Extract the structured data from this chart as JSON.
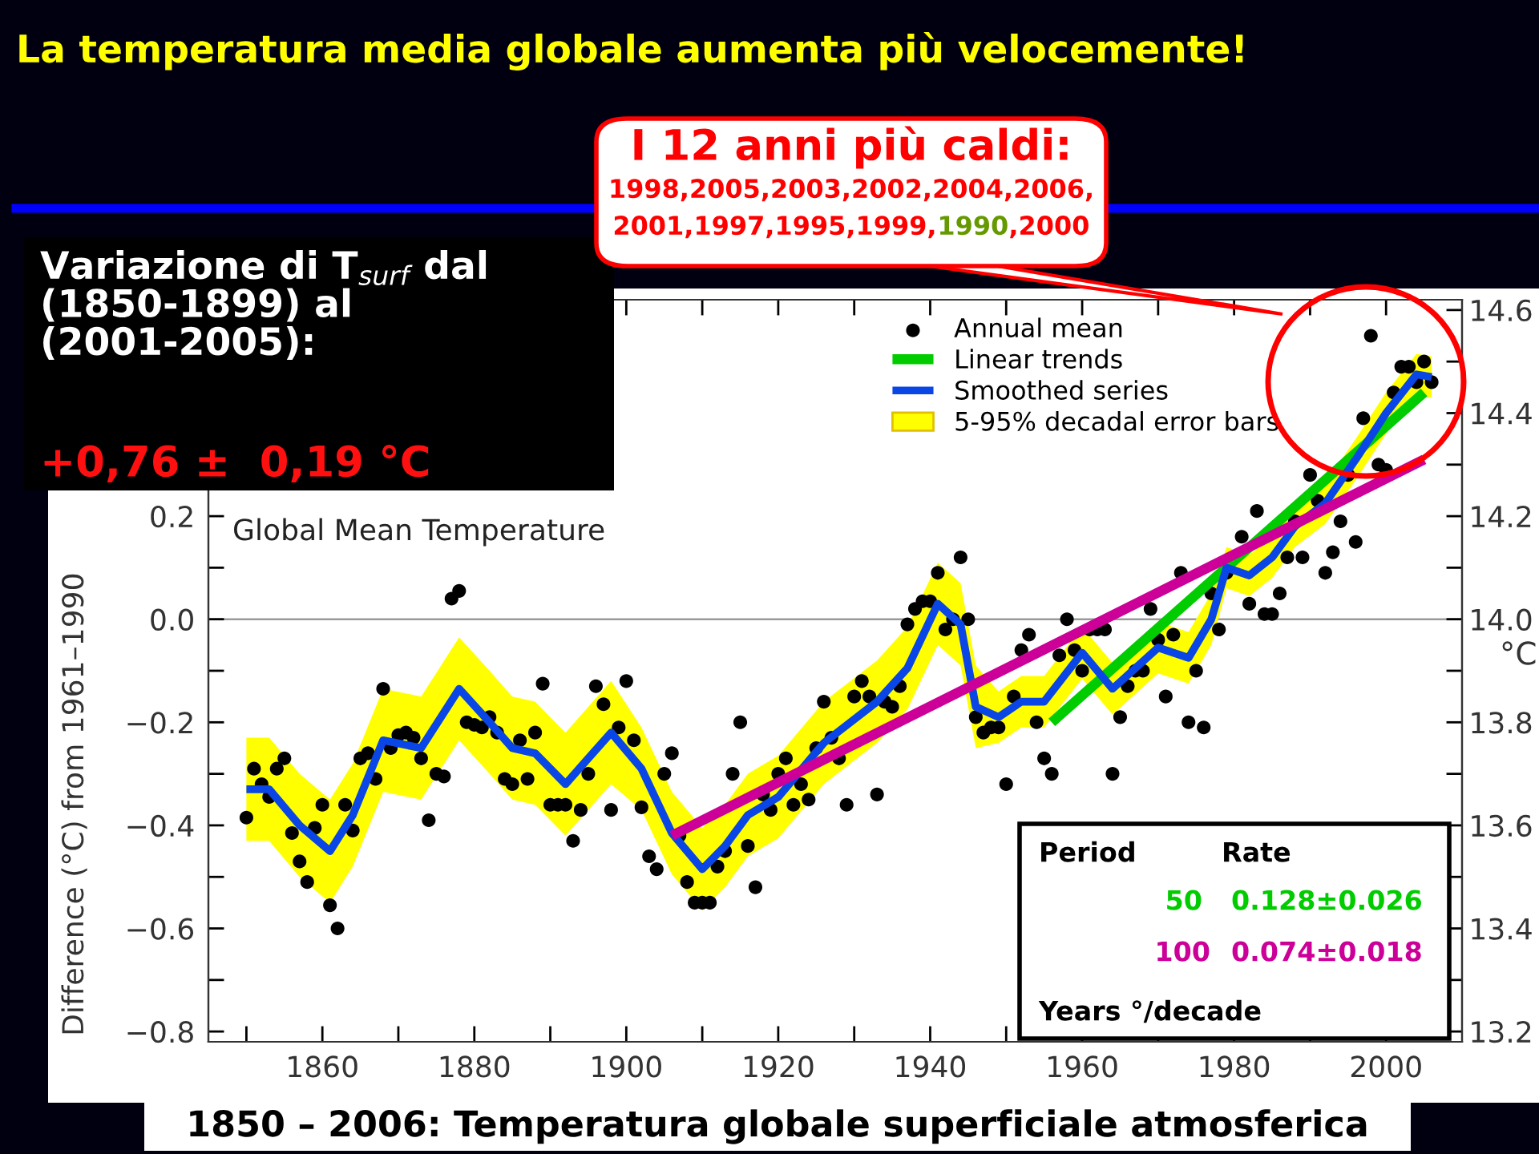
{
  "chart_data": {
    "type": "line",
    "title": "La temperatura media globale aumenta più velocemente!",
    "subtitle": "Global Mean Temperature",
    "ylabel": "Difference (°C) from 1961–1990",
    "y2label": "°C",
    "xlim": [
      1845,
      2010
    ],
    "xticks": [
      {
        "value": 1850,
        "label": null
      },
      1860,
      {
        "value": 1870,
        "label": null
      },
      1880,
      {
        "value": 1890,
        "label": null
      },
      1900,
      {
        "value": 1910,
        "label": null
      },
      1920,
      {
        "value": 1930,
        "label": null
      },
      1940,
      {
        "value": 1950,
        "label": null
      },
      1960,
      {
        "value": 1970,
        "label": null
      },
      1980,
      {
        "value": 1990,
        "label": null
      },
      2000
    ],
    "ylim": [
      -0.82,
      0.62
    ],
    "yticks": [
      {
        "value": -0.8,
        "label": "−0.8"
      },
      {
        "value": -0.7,
        "label": null
      },
      {
        "value": -0.6,
        "label": "−0.6"
      },
      {
        "value": -0.5,
        "label": null
      },
      {
        "value": -0.4,
        "label": "−0.4"
      },
      {
        "value": -0.3,
        "label": null
      },
      {
        "value": -0.2,
        "label": "−0.2"
      },
      {
        "value": -0.1,
        "label": null
      },
      {
        "value": 0,
        "label": "0.0"
      },
      {
        "value": 0.1,
        "label": null
      },
      0.2
    ],
    "y2lim": [
      13.18,
      14.62
    ],
    "y2ticks": [
      13.2,
      {
        "value": 13.3,
        "label": null
      },
      13.4,
      {
        "value": 13.5,
        "label": null
      },
      13.6,
      {
        "value": 13.7,
        "label": null
      },
      13.8,
      {
        "value": 13.9,
        "label": null
      },
      {
        "value": 14,
        "label": "14.0"
      },
      {
        "value": 14.1,
        "label": null
      },
      14.2,
      {
        "value": 14.3,
        "label": null
      },
      14.4,
      {
        "value": 14.5,
        "label": null
      },
      14.6
    ],
    "grid": false,
    "legend": "top",
    "ref_lines": [
      {
        "axis": "y",
        "value": 0,
        "color": "#9a9a9a"
      }
    ],
    "series": [
      {
        "name": "Annual mean",
        "type": "scatter",
        "color": "#000000",
        "marker": "circle",
        "x": [
          1850,
          1851,
          1852,
          1853,
          1854,
          1855,
          1856,
          1857,
          1858,
          1859,
          1860,
          1861,
          1862,
          1863,
          1864,
          1865,
          1866,
          1867,
          1868,
          1869,
          1870,
          1871,
          1872,
          1873,
          1874,
          1875,
          1876,
          1877,
          1878,
          1879,
          1880,
          1881,
          1882,
          1883,
          1884,
          1885,
          1886,
          1887,
          1888,
          1889,
          1890,
          1891,
          1892,
          1893,
          1894,
          1895,
          1896,
          1897,
          1898,
          1899,
          1900,
          1901,
          1902,
          1903,
          1904,
          1905,
          1906,
          1907,
          1908,
          1909,
          1910,
          1911,
          1912,
          1913,
          1914,
          1915,
          1916,
          1917,
          1918,
          1919,
          1920,
          1921,
          1922,
          1923,
          1924,
          1925,
          1926,
          1927,
          1928,
          1929,
          1930,
          1931,
          1932,
          1933,
          1934,
          1935,
          1936,
          1937,
          1938,
          1939,
          1940,
          1941,
          1942,
          1943,
          1944,
          1945,
          1946,
          1947,
          1948,
          1949,
          1950,
          1951,
          1952,
          1953,
          1954,
          1955,
          1956,
          1957,
          1958,
          1959,
          1960,
          1961,
          1962,
          1963,
          1964,
          1965,
          1966,
          1967,
          1968,
          1969,
          1970,
          1971,
          1972,
          1973,
          1974,
          1975,
          1976,
          1977,
          1978,
          1979,
          1980,
          1981,
          1982,
          1983,
          1984,
          1985,
          1986,
          1987,
          1988,
          1989,
          1990,
          1991,
          1992,
          1993,
          1994,
          1995,
          1996,
          1997,
          1998,
          1999,
          2000,
          2001,
          2002,
          2003,
          2004,
          2005,
          2006
        ],
        "values": [
          -0.385,
          -0.29,
          -0.32,
          -0.345,
          -0.29,
          -0.27,
          -0.415,
          -0.47,
          -0.51,
          -0.405,
          -0.36,
          -0.555,
          -0.6,
          -0.36,
          -0.41,
          -0.27,
          -0.26,
          -0.31,
          -0.135,
          -0.25,
          -0.225,
          -0.22,
          -0.23,
          -0.27,
          -0.39,
          -0.3,
          -0.305,
          0.04,
          0.055,
          -0.2,
          -0.205,
          -0.21,
          -0.19,
          -0.22,
          -0.31,
          -0.32,
          -0.235,
          -0.31,
          -0.22,
          -0.125,
          -0.36,
          -0.36,
          -0.36,
          -0.43,
          -0.37,
          -0.3,
          -0.13,
          -0.165,
          -0.37,
          -0.21,
          -0.12,
          -0.235,
          -0.365,
          -0.46,
          -0.485,
          -0.3,
          -0.26,
          -0.42,
          -0.51,
          -0.55,
          -0.55,
          -0.55,
          -0.48,
          -0.45,
          -0.3,
          -0.2,
          -0.44,
          -0.52,
          -0.34,
          -0.37,
          -0.3,
          -0.27,
          -0.36,
          -0.32,
          -0.35,
          -0.25,
          -0.16,
          -0.23,
          -0.27,
          -0.36,
          -0.15,
          -0.12,
          -0.15,
          -0.34,
          -0.16,
          -0.17,
          -0.13,
          -0.01,
          0.02,
          0.035,
          0.035,
          0.09,
          -0.02,
          0.0,
          0.12,
          0.0,
          -0.19,
          -0.22,
          -0.21,
          -0.21,
          -0.32,
          -0.15,
          -0.06,
          -0.03,
          -0.2,
          -0.27,
          -0.3,
          -0.07,
          0.0,
          -0.06,
          -0.1,
          -0.02,
          -0.02,
          -0.02,
          -0.3,
          -0.19,
          -0.13,
          -0.1,
          -0.1,
          0.02,
          -0.04,
          -0.15,
          -0.03,
          0.09,
          -0.2,
          -0.1,
          -0.21,
          0.05,
          -0.02,
          0.09,
          null,
          0.16,
          0.03,
          0.21,
          0.01,
          0.01,
          0.05,
          0.12,
          0.19,
          0.12,
          0.28,
          0.23,
          0.09,
          0.13,
          0.19,
          0.28,
          0.15,
          0.39,
          0.55,
          0.3,
          0.29,
          0.44,
          0.49,
          0.49,
          0.46,
          0.5,
          0.46
        ]
      },
      {
        "name": "Linear trends",
        "type": "line",
        "color": "#00cc00",
        "x": [
          1956,
          2005
        ],
        "values": [
          -0.2,
          0.44
        ]
      },
      {
        "name": "Smoothed series",
        "type": "line",
        "color": "#0a46e6",
        "x": [
          1850,
          1853,
          1857,
          1861,
          1864,
          1868,
          1873,
          1878,
          1882,
          1885,
          1888,
          1892,
          1895,
          1898,
          1902,
          1906,
          1910,
          1913,
          1916,
          1920,
          1926,
          1933,
          1937,
          1941,
          1944,
          1946,
          1949,
          1952,
          1955,
          1960,
          1964,
          1970,
          1974,
          1977,
          1979,
          1982,
          1985,
          1988,
          1992,
          1996,
          2000,
          2004,
          2006
        ],
        "values": [
          -0.33,
          -0.33,
          -0.4,
          -0.45,
          -0.38,
          -0.235,
          -0.25,
          -0.135,
          -0.2,
          -0.25,
          -0.26,
          -0.32,
          -0.27,
          -0.22,
          -0.29,
          -0.415,
          -0.485,
          -0.44,
          -0.38,
          -0.345,
          -0.24,
          -0.16,
          -0.095,
          0.03,
          -0.01,
          -0.17,
          -0.19,
          -0.16,
          -0.16,
          -0.065,
          -0.135,
          -0.055,
          -0.075,
          0.0,
          0.1,
          0.085,
          0.12,
          0.18,
          0.225,
          0.31,
          0.4,
          0.475,
          0.47
        ],
        "lower": [
          -0.43,
          -0.43,
          -0.5,
          -0.55,
          -0.48,
          -0.335,
          -0.35,
          -0.235,
          -0.3,
          -0.35,
          -0.36,
          -0.42,
          -0.37,
          -0.32,
          -0.37,
          -0.495,
          -0.565,
          -0.52,
          -0.46,
          -0.425,
          -0.32,
          -0.24,
          -0.175,
          -0.05,
          -0.09,
          -0.25,
          -0.24,
          -0.21,
          -0.21,
          -0.115,
          -0.185,
          -0.105,
          -0.125,
          -0.05,
          0.06,
          0.045,
          0.08,
          0.14,
          0.185,
          0.27,
          0.36,
          0.435,
          0.43
        ],
        "upper": [
          -0.23,
          -0.23,
          -0.3,
          -0.35,
          -0.28,
          -0.135,
          -0.15,
          -0.035,
          -0.1,
          -0.15,
          -0.16,
          -0.22,
          -0.17,
          -0.12,
          -0.21,
          -0.335,
          -0.405,
          -0.36,
          -0.3,
          -0.265,
          -0.16,
          -0.08,
          -0.015,
          0.11,
          0.07,
          -0.09,
          -0.14,
          -0.11,
          -0.11,
          -0.015,
          -0.085,
          -0.005,
          -0.025,
          0.05,
          0.14,
          0.125,
          0.16,
          0.22,
          0.265,
          0.35,
          0.44,
          0.515,
          0.51
        ]
      },
      {
        "color": "#cc0099",
        "x": [
          1906,
          2005
        ],
        "values": [
          -0.42,
          0.31
        ]
      }
    ],
    "annotations": [
      "Variazione di T$_{surf}$ dal\n(1850-1899) al\n(2001-2005):",
      "+0,76 ±  0,19 °C",
      "I 12 anni più caldi:",
      "1998,2005,2003,2002,2004,2006,",
      "2001,1997,1995,1999,",
      "1990",
      ",2000",
      "1850 – 2006: Temperatura globale superficiale atmosferica",
      "Period",
      "Rate",
      "50",
      "0.128±0.026",
      "100",
      "0.074±0.018",
      "Years",
      "°/decade",
      "5-95% decadal error bars"
    ]
  }
}
